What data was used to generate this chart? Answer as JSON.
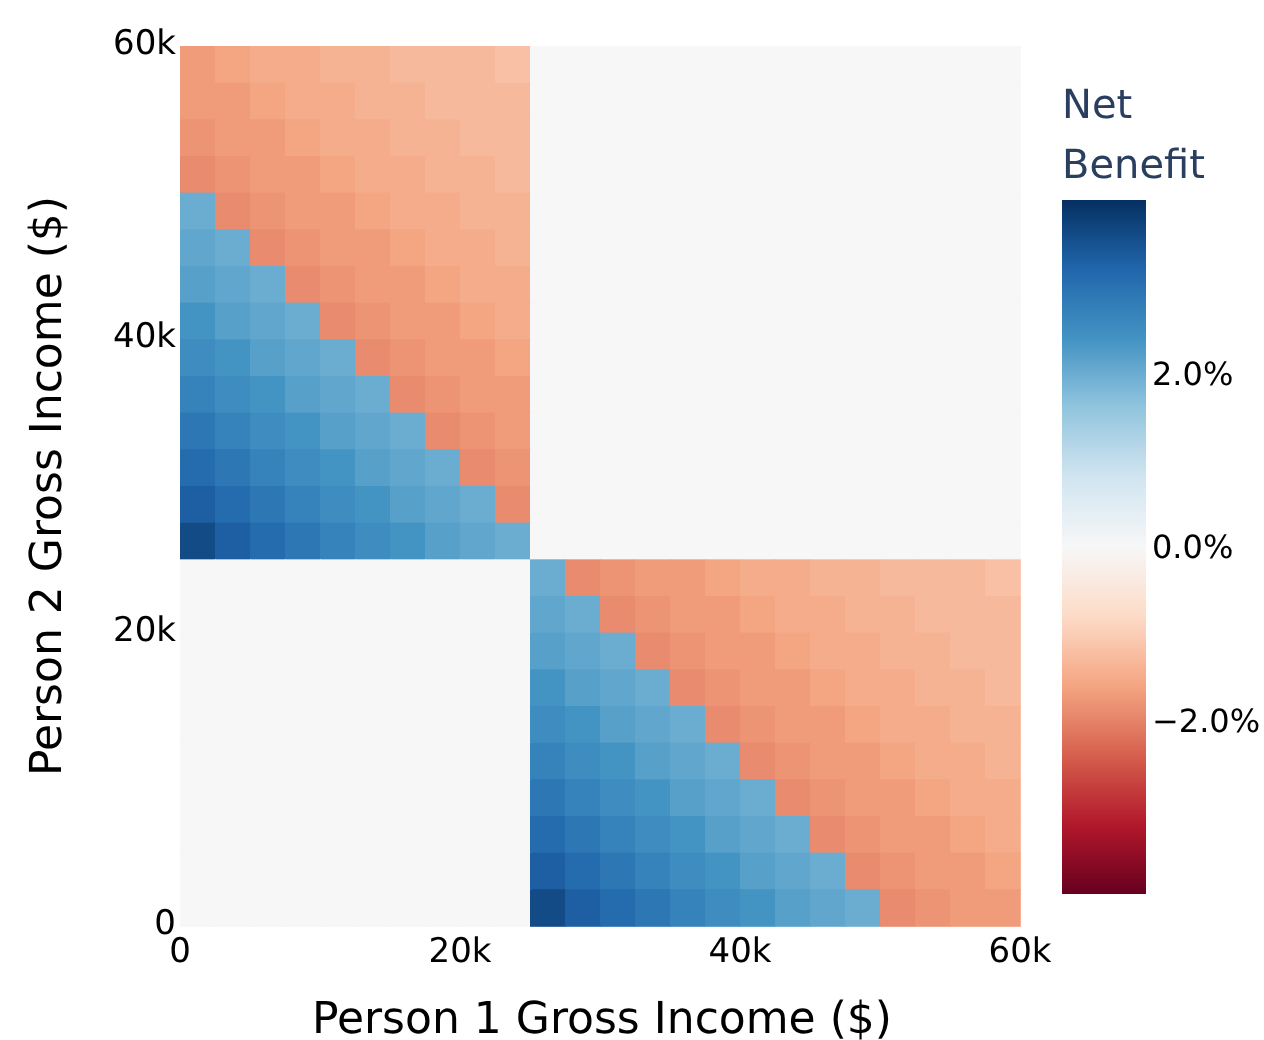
{
  "chart_data": {
    "type": "heatmap",
    "xlabel": "Person 1 Gross Income ($)",
    "ylabel": "Person 2 Gross Income ($)",
    "clabel": "Net Benefit",
    "xlim": [
      0,
      60000
    ],
    "xticks": [
      0,
      {
        "value": 20000,
        "label": "20k"
      },
      {
        "value": 40000,
        "label": "40k"
      },
      {
        "value": 60000,
        "label": "60k"
      }
    ],
    "ylim": [
      0,
      60000
    ],
    "yticks": [
      0,
      {
        "value": 20000,
        "label": "20k"
      },
      {
        "value": 40000,
        "label": "40k"
      },
      {
        "value": 60000,
        "label": "60k"
      }
    ],
    "clim": [
      -4,
      4
    ],
    "cticks": [
      {
        "value": -2,
        "label": "−2.0%"
      },
      {
        "value": 0,
        "label": "0.0%"
      },
      {
        "value": 2,
        "label": "2.0%"
      }
    ],
    "cells": [
      [
        -1.7,
        -1.6,
        -1.5,
        -1.5,
        -1.4,
        -1.4,
        -1.3,
        -1.3,
        -1.3,
        -1.2,
        0,
        0,
        0,
        0,
        0,
        0,
        0,
        0,
        0,
        0,
        0,
        0,
        0,
        0
      ],
      [
        -1.7,
        -1.7,
        -1.6,
        -1.5,
        -1.5,
        -1.4,
        -1.4,
        -1.3,
        -1.3,
        -1.3,
        0,
        0,
        0,
        0,
        0,
        0,
        0,
        0,
        0,
        0,
        0,
        0,
        0,
        0
      ],
      [
        -1.8,
        -1.7,
        -1.7,
        -1.6,
        -1.5,
        -1.5,
        -1.4,
        -1.4,
        -1.3,
        -1.3,
        0,
        0,
        0,
        0,
        0,
        0,
        0,
        0,
        0,
        0,
        0,
        0,
        0,
        0
      ],
      [
        -1.9,
        -1.8,
        -1.7,
        -1.7,
        -1.6,
        -1.5,
        -1.5,
        -1.4,
        -1.4,
        -1.3,
        0,
        0,
        0,
        0,
        0,
        0,
        0,
        0,
        0,
        0,
        0,
        0,
        0,
        0
      ],
      [
        2.0,
        -1.9,
        -1.8,
        -1.7,
        -1.7,
        -1.6,
        -1.5,
        -1.5,
        -1.4,
        -1.4,
        0,
        0,
        0,
        0,
        0,
        0,
        0,
        0,
        0,
        0,
        0,
        0,
        0,
        0
      ],
      [
        2.1,
        2.0,
        -1.9,
        -1.8,
        -1.7,
        -1.7,
        -1.6,
        -1.5,
        -1.5,
        -1.4,
        0,
        0,
        0,
        0,
        0,
        0,
        0,
        0,
        0,
        0,
        0,
        0,
        0,
        0
      ],
      [
        2.2,
        2.1,
        2.0,
        -1.9,
        -1.8,
        -1.7,
        -1.7,
        -1.6,
        -1.5,
        -1.5,
        0,
        0,
        0,
        0,
        0,
        0,
        0,
        0,
        0,
        0,
        0,
        0,
        0,
        0
      ],
      [
        2.4,
        2.2,
        2.1,
        2.0,
        -1.9,
        -1.8,
        -1.7,
        -1.7,
        -1.6,
        -1.5,
        0,
        0,
        0,
        0,
        0,
        0,
        0,
        0,
        0,
        0,
        0,
        0,
        0,
        0
      ],
      [
        2.5,
        2.4,
        2.2,
        2.1,
        2.0,
        -1.9,
        -1.8,
        -1.7,
        -1.7,
        -1.6,
        0,
        0,
        0,
        0,
        0,
        0,
        0,
        0,
        0,
        0,
        0,
        0,
        0,
        0
      ],
      [
        2.7,
        2.5,
        2.4,
        2.2,
        2.1,
        2.0,
        -1.9,
        -1.8,
        -1.7,
        -1.7,
        0,
        0,
        0,
        0,
        0,
        0,
        0,
        0,
        0,
        0,
        0,
        0,
        0,
        0
      ],
      [
        2.9,
        2.7,
        2.5,
        2.4,
        2.2,
        2.1,
        2.0,
        -1.9,
        -1.8,
        -1.7,
        0,
        0,
        0,
        0,
        0,
        0,
        0,
        0,
        0,
        0,
        0,
        0,
        0,
        0
      ],
      [
        3.1,
        2.9,
        2.7,
        2.5,
        2.4,
        2.2,
        2.1,
        2.0,
        -1.9,
        -1.8,
        0,
        0,
        0,
        0,
        0,
        0,
        0,
        0,
        0,
        0,
        0,
        0,
        0,
        0
      ],
      [
        3.3,
        3.1,
        2.9,
        2.7,
        2.5,
        2.4,
        2.2,
        2.1,
        2.0,
        -1.9,
        0,
        0,
        0,
        0,
        0,
        0,
        0,
        0,
        0,
        0,
        0,
        0,
        0,
        0
      ],
      [
        3.6,
        3.3,
        3.1,
        2.9,
        2.7,
        2.5,
        2.4,
        2.2,
        2.1,
        2.0,
        0,
        0,
        0,
        0,
        0,
        0,
        0,
        0,
        0,
        0,
        0,
        0,
        0,
        0
      ],
      [
        0,
        0,
        0,
        0,
        0,
        0,
        0,
        0,
        0,
        0,
        2.0,
        -1.9,
        -1.8,
        -1.7,
        -1.7,
        -1.6,
        -1.5,
        -1.5,
        -1.4,
        -1.4,
        -1.3,
        -1.3,
        -1.3,
        -1.2
      ],
      [
        0,
        0,
        0,
        0,
        0,
        0,
        0,
        0,
        0,
        0,
        2.1,
        2.0,
        -1.9,
        -1.8,
        -1.7,
        -1.7,
        -1.6,
        -1.5,
        -1.5,
        -1.4,
        -1.4,
        -1.3,
        -1.3,
        -1.3
      ],
      [
        0,
        0,
        0,
        0,
        0,
        0,
        0,
        0,
        0,
        0,
        2.2,
        2.1,
        2.0,
        -1.9,
        -1.8,
        -1.7,
        -1.7,
        -1.6,
        -1.5,
        -1.5,
        -1.4,
        -1.4,
        -1.3,
        -1.3
      ],
      [
        0,
        0,
        0,
        0,
        0,
        0,
        0,
        0,
        0,
        0,
        2.4,
        2.2,
        2.1,
        2.0,
        -1.9,
        -1.8,
        -1.7,
        -1.7,
        -1.6,
        -1.5,
        -1.5,
        -1.4,
        -1.4,
        -1.3
      ],
      [
        0,
        0,
        0,
        0,
        0,
        0,
        0,
        0,
        0,
        0,
        2.5,
        2.4,
        2.2,
        2.1,
        2.0,
        -1.9,
        -1.8,
        -1.7,
        -1.7,
        -1.6,
        -1.5,
        -1.5,
        -1.4,
        -1.4
      ],
      [
        0,
        0,
        0,
        0,
        0,
        0,
        0,
        0,
        0,
        0,
        2.7,
        2.5,
        2.4,
        2.2,
        2.1,
        2.0,
        -1.9,
        -1.8,
        -1.7,
        -1.7,
        -1.6,
        -1.5,
        -1.5,
        -1.4
      ],
      [
        0,
        0,
        0,
        0,
        0,
        0,
        0,
        0,
        0,
        0,
        2.9,
        2.7,
        2.5,
        2.4,
        2.2,
        2.1,
        2.0,
        -1.9,
        -1.8,
        -1.7,
        -1.7,
        -1.6,
        -1.5,
        -1.5
      ],
      [
        0,
        0,
        0,
        0,
        0,
        0,
        0,
        0,
        0,
        0,
        3.1,
        2.9,
        2.7,
        2.5,
        2.4,
        2.2,
        2.1,
        2.0,
        -1.9,
        -1.8,
        -1.7,
        -1.7,
        -1.6,
        -1.5
      ],
      [
        0,
        0,
        0,
        0,
        0,
        0,
        0,
        0,
        0,
        0,
        3.3,
        3.1,
        2.9,
        2.7,
        2.5,
        2.4,
        2.2,
        2.1,
        2.0,
        -1.9,
        -1.8,
        -1.7,
        -1.7,
        -1.6
      ],
      [
        0,
        0,
        0,
        0,
        0,
        0,
        0,
        0,
        0,
        0,
        3.6,
        3.3,
        3.1,
        2.9,
        2.7,
        2.5,
        2.4,
        2.2,
        2.1,
        2.0,
        -1.9,
        -1.8,
        -1.7,
        -1.7
      ]
    ]
  }
}
